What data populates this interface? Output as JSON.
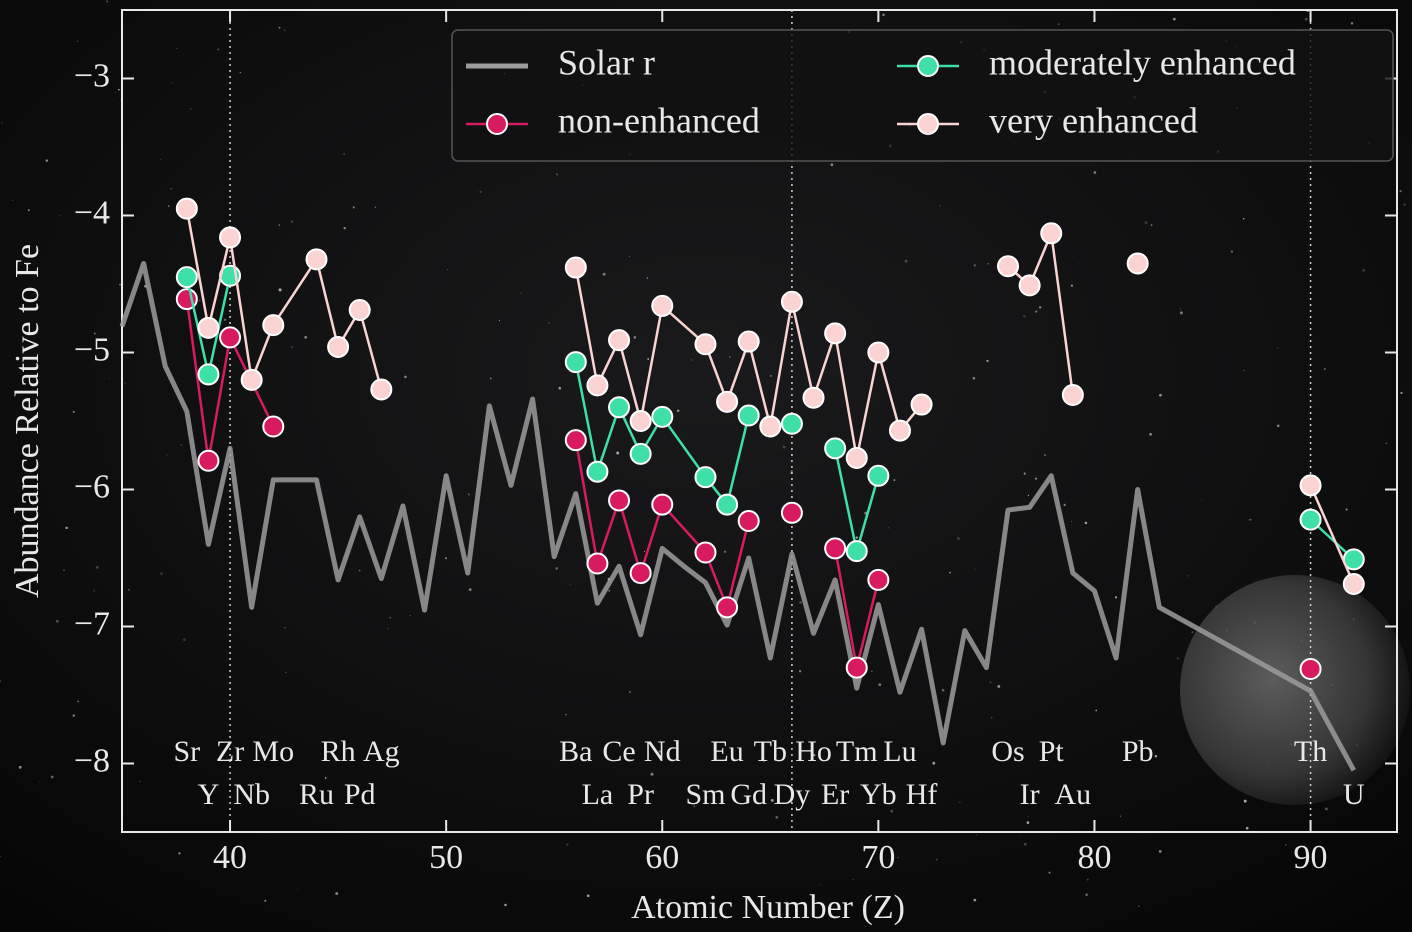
{
  "chart_data": {
    "type": "line",
    "x_label": "Atomic Number (Z)",
    "y_label": "Abundance Relative to Fe",
    "xlim": [
      35,
      94
    ],
    "ylim": [
      -8.5,
      -2.5
    ],
    "xticks": [
      40,
      50,
      60,
      70,
      80,
      90
    ],
    "yticks": [
      {
        "value": -3,
        "label": "−3"
      },
      {
        "value": -4,
        "label": "−4"
      },
      {
        "value": -5,
        "label": "−5"
      },
      {
        "value": -6,
        "label": "−6"
      },
      {
        "value": -7,
        "label": "−7"
      },
      {
        "value": -8,
        "label": "−8"
      }
    ],
    "reference_lines": [
      40,
      66,
      90
    ],
    "legend": "upper right",
    "series": [
      {
        "name": "Solar r",
        "color": "#9c9c9c",
        "markers": false,
        "x": [
          35,
          36,
          37,
          38,
          39,
          40,
          41,
          42,
          43,
          44,
          45,
          46,
          47,
          48,
          49,
          50,
          51,
          52,
          53,
          54,
          55,
          56,
          57,
          58,
          59,
          60,
          61,
          62,
          63,
          64,
          65,
          66,
          67,
          68,
          69,
          70,
          71,
          72,
          73,
          74,
          75,
          76,
          77,
          78,
          79,
          80,
          81,
          82,
          83,
          90,
          92
        ],
        "values": [
          -4.81,
          -4.35,
          -5.1,
          -5.43,
          -6.4,
          -5.7,
          -6.86,
          -5.93,
          -5.93,
          -5.93,
          -6.66,
          -6.2,
          -6.65,
          -6.12,
          -6.88,
          -5.9,
          -6.61,
          -5.39,
          -5.97,
          -5.34,
          -6.49,
          -6.03,
          -6.83,
          -6.56,
          -7.06,
          -6.43,
          -6.56,
          -6.68,
          -6.99,
          -6.5,
          -7.23,
          -6.47,
          -7.05,
          -6.66,
          -7.45,
          -6.84,
          -7.48,
          -7.02,
          -7.85,
          -7.03,
          -7.3,
          -6.15,
          -6.13,
          -5.9,
          -6.61,
          -6.74,
          -7.23,
          -6.0,
          -6.86,
          -7.47,
          -8.05
        ]
      },
      {
        "name": "non-enhanced",
        "color": "#d81b60",
        "markers": true,
        "x": [
          38,
          39,
          40,
          42,
          50,
          56,
          57,
          58,
          59,
          60,
          62,
          63,
          64,
          65,
          66,
          67,
          68,
          69,
          70,
          80,
          90
        ],
        "values": [
          -4.61,
          -5.79,
          -4.89,
          -5.54,
          null,
          -5.64,
          -6.54,
          -6.08,
          -6.61,
          -6.11,
          -6.46,
          -6.86,
          -6.23,
          null,
          -6.17,
          null,
          -6.43,
          -7.3,
          -6.66,
          null,
          -7.31
        ]
      },
      {
        "name": "moderately enhanced",
        "color": "#3ee0a8",
        "markers": true,
        "x": [
          38,
          39,
          40,
          50,
          56,
          57,
          58,
          59,
          60,
          62,
          63,
          64,
          65,
          66,
          67,
          68,
          69,
          70,
          80,
          90,
          92
        ],
        "values": [
          -4.45,
          -5.16,
          -4.44,
          null,
          -5.07,
          -5.87,
          -5.4,
          -5.74,
          -5.47,
          -5.91,
          -6.11,
          -5.46,
          null,
          -5.52,
          null,
          -5.7,
          -6.45,
          -5.9,
          null,
          -6.22,
          -6.51
        ]
      },
      {
        "name": "very enhanced",
        "color": "#fbd3d3",
        "markers": true,
        "x": [
          38,
          39,
          40,
          41,
          42,
          44,
          45,
          46,
          47,
          50,
          56,
          57,
          58,
          59,
          60,
          62,
          63,
          64,
          65,
          66,
          67,
          68,
          69,
          70,
          71,
          72,
          74,
          76,
          77,
          78,
          79,
          80,
          82,
          85,
          90,
          92
        ],
        "values": [
          -3.95,
          -4.82,
          -4.16,
          -5.2,
          -4.8,
          -4.32,
          -4.96,
          -4.69,
          -5.27,
          null,
          -4.38,
          -5.24,
          -4.91,
          -5.5,
          -4.66,
          -4.94,
          -5.36,
          -4.92,
          -5.54,
          -4.63,
          -5.33,
          -4.86,
          -5.77,
          -5.0,
          -5.57,
          -5.38,
          null,
          -4.37,
          -4.51,
          -4.13,
          -5.31,
          null,
          -4.35,
          null,
          -5.97,
          -6.69
        ]
      }
    ],
    "element_labels_top": [
      {
        "label": "Sr",
        "z": 38
      },
      {
        "label": "Zr",
        "z": 40
      },
      {
        "label": "Mo",
        "z": 42
      },
      {
        "label": "Rh",
        "z": 45
      },
      {
        "label": "Ag",
        "z": 47
      },
      {
        "label": "Ba",
        "z": 56
      },
      {
        "label": "Ce",
        "z": 58
      },
      {
        "label": "Nd",
        "z": 60
      },
      {
        "label": "Eu",
        "z": 63
      },
      {
        "label": "Tb",
        "z": 65
      },
      {
        "label": "Ho",
        "z": 67
      },
      {
        "label": "Tm",
        "z": 69
      },
      {
        "label": "Lu",
        "z": 71
      },
      {
        "label": "Os",
        "z": 76
      },
      {
        "label": "Pt",
        "z": 78
      },
      {
        "label": "Pb",
        "z": 82
      },
      {
        "label": "Th",
        "z": 90
      }
    ],
    "element_labels_bottom": [
      {
        "label": "Y",
        "z": 39
      },
      {
        "label": "Nb",
        "z": 41
      },
      {
        "label": "Ru",
        "z": 44
      },
      {
        "label": "Pd",
        "z": 46
      },
      {
        "label": "La",
        "z": 57
      },
      {
        "label": "Pr",
        "z": 59
      },
      {
        "label": "Sm",
        "z": 62
      },
      {
        "label": "Gd",
        "z": 64
      },
      {
        "label": "Dy",
        "z": 66
      },
      {
        "label": "Er",
        "z": 68
      },
      {
        "label": "Yb",
        "z": 70
      },
      {
        "label": "Hf",
        "z": 72
      },
      {
        "label": "Ir",
        "z": 77
      },
      {
        "label": "Au",
        "z": 79
      },
      {
        "label": "U",
        "z": 92
      }
    ]
  }
}
